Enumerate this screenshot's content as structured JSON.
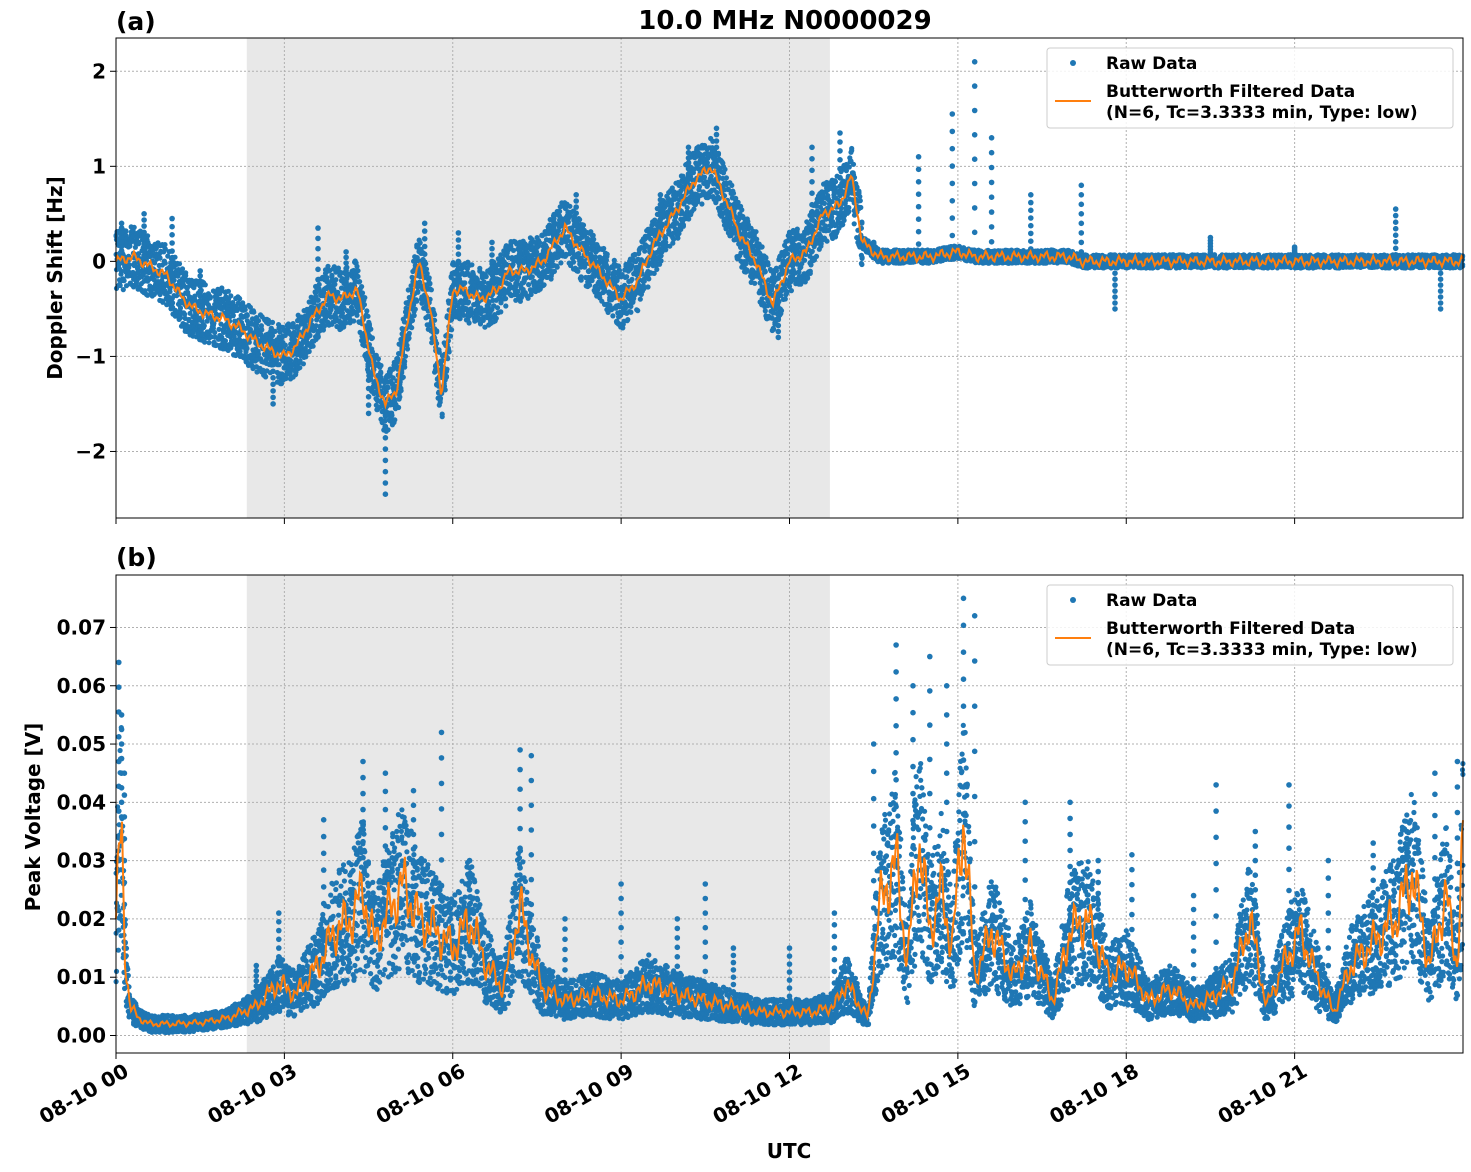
{
  "figure": {
    "title": "10.0 MHz N0000029",
    "xlabel": "UTC"
  },
  "colors": {
    "raw": "#1f77b4",
    "filtered": "#ff7f0e",
    "shade": "#e8e8e8",
    "grid": "#b0b0b0"
  },
  "chart_data": [
    {
      "type": "scatter",
      "panel_label": "(a)",
      "ylabel": "Doppler Shift [Hz]",
      "xlim": [
        0,
        24
      ],
      "ylim": [
        -2.7,
        2.35
      ],
      "yticks": [
        2,
        1,
        0,
        -1,
        -2
      ],
      "ytick_labels": [
        "2",
        "1",
        "0",
        "−1",
        "−2"
      ],
      "grid": true,
      "legend_position": "top-right",
      "legend": [
        "Raw Data",
        "Butterworth Filtered Data",
        "(N=6, Tc=3.3333 min, Type: low)"
      ],
      "shaded_x_range": [
        2.33,
        12.72
      ],
      "series": [
        {
          "name": "Butterworth Filtered Data",
          "x": [
            0,
            0.3,
            0.6,
            0.9,
            1.2,
            1.4,
            1.6,
            1.9,
            2.2,
            2.5,
            2.8,
            3.0,
            3.2,
            3.5,
            3.8,
            4.0,
            4.3,
            4.6,
            4.8,
            5.0,
            5.2,
            5.4,
            5.6,
            5.8,
            6.0,
            6.2,
            6.5,
            6.8,
            7.0,
            7.3,
            7.6,
            8.0,
            8.3,
            8.6,
            9.0,
            9.3,
            9.6,
            10.0,
            10.3,
            10.6,
            10.9,
            11.1,
            11.4,
            11.7,
            12.0,
            12.3,
            12.6,
            12.9,
            13.1,
            13.3,
            13.6,
            14.0,
            14.5,
            15.0,
            15.3,
            16.0,
            17.0,
            17.2,
            18.0,
            19.0,
            20.0,
            21.0,
            22.0,
            23.0,
            24.0
          ],
          "y": [
            0.0,
            0.05,
            -0.05,
            -0.15,
            -0.4,
            -0.5,
            -0.55,
            -0.6,
            -0.7,
            -0.85,
            -0.95,
            -1.0,
            -0.9,
            -0.6,
            -0.35,
            -0.4,
            -0.3,
            -1.2,
            -1.5,
            -1.35,
            -0.6,
            0.0,
            -0.5,
            -1.4,
            -0.3,
            -0.3,
            -0.4,
            -0.3,
            -0.1,
            -0.1,
            0.0,
            0.35,
            0.1,
            -0.1,
            -0.4,
            -0.2,
            0.2,
            0.55,
            0.85,
            1.0,
            0.6,
            0.3,
            0.0,
            -0.45,
            0.0,
            0.1,
            0.5,
            0.6,
            0.9,
            0.2,
            0.05,
            0.05,
            0.05,
            0.1,
            0.05,
            0.05,
            0.05,
            0.0,
            0.0,
            0.0,
            0.0,
            0.0,
            0.0,
            0.0,
            0.0
          ]
        },
        {
          "name": "Raw Data",
          "x": [
            0.1,
            0.5,
            1.0,
            1.5,
            2.0,
            2.5,
            2.8,
            3.2,
            3.6,
            4.1,
            4.5,
            4.8,
            5.1,
            5.5,
            6.1,
            6.7,
            7.2,
            7.8,
            8.2,
            8.7,
            9.1,
            9.7,
            10.2,
            10.7,
            11.2,
            11.8,
            12.4,
            12.9,
            13.5,
            14.3,
            14.9,
            15.3,
            15.6,
            16.3,
            17.2,
            17.8,
            19.5,
            21.0,
            22.8,
            23.6
          ],
          "y": [
            0.4,
            0.5,
            0.45,
            -0.1,
            -0.4,
            -0.6,
            -1.5,
            -0.9,
            0.35,
            0.1,
            -1.6,
            -2.45,
            -0.9,
            0.4,
            0.3,
            0.2,
            0.2,
            0.45,
            0.7,
            -0.3,
            -0.3,
            0.7,
            1.2,
            1.4,
            0.4,
            -0.8,
            1.2,
            1.35,
            0.2,
            1.1,
            1.55,
            2.1,
            1.3,
            0.7,
            0.8,
            -0.5,
            0.25,
            0.15,
            0.55,
            -0.5
          ]
        }
      ]
    },
    {
      "type": "scatter",
      "panel_label": "(b)",
      "ylabel": "Peak Voltage [V]",
      "xlim": [
        0,
        24
      ],
      "ylim": [
        -0.003,
        0.079
      ],
      "yticks": [
        0.07,
        0.06,
        0.05,
        0.04,
        0.03,
        0.02,
        0.01,
        0.0
      ],
      "ytick_labels": [
        "0.07",
        "0.06",
        "0.05",
        "0.04",
        "0.03",
        "0.02",
        "0.01",
        "0.00"
      ],
      "xticks": [
        0,
        3,
        6,
        9,
        12,
        15,
        18,
        21
      ],
      "xtick_labels": [
        "08-10 00",
        "08-10 03",
        "08-10 06",
        "08-10 09",
        "08-10 12",
        "08-10 15",
        "08-10 18",
        "08-10 21"
      ],
      "grid": true,
      "legend_position": "top-right",
      "legend": [
        "Raw Data",
        "Butterworth Filtered Data",
        "(N=6, Tc=3.3333 min, Type: low)"
      ],
      "shaded_x_range": [
        2.33,
        12.72
      ],
      "series": [
        {
          "name": "Butterworth Filtered Data",
          "x": [
            0,
            0.05,
            0.1,
            0.15,
            0.25,
            0.4,
            0.6,
            1.0,
            1.5,
            2.0,
            2.5,
            2.9,
            3.2,
            3.6,
            3.9,
            4.2,
            4.4,
            4.6,
            4.9,
            5.1,
            5.4,
            5.7,
            6.0,
            6.3,
            6.6,
            6.9,
            7.2,
            7.4,
            7.6,
            8.0,
            8.5,
            9.0,
            9.5,
            10.0,
            10.5,
            11.0,
            11.5,
            12.0,
            12.4,
            12.8,
            13.0,
            13.2,
            13.4,
            13.6,
            13.9,
            14.1,
            14.3,
            14.5,
            14.7,
            14.9,
            15.1,
            15.3,
            15.6,
            16.0,
            16.3,
            16.7,
            17.0,
            17.3,
            17.7,
            18.0,
            18.4,
            18.8,
            19.2,
            19.6,
            19.9,
            20.2,
            20.5,
            20.8,
            21.1,
            21.4,
            21.7,
            22.0,
            22.4,
            22.8,
            23.1,
            23.4,
            23.7,
            23.9,
            24.0
          ],
          "y": [
            0.02,
            0.03,
            0.035,
            0.015,
            0.005,
            0.003,
            0.002,
            0.002,
            0.0022,
            0.003,
            0.005,
            0.009,
            0.007,
            0.012,
            0.018,
            0.02,
            0.025,
            0.016,
            0.022,
            0.026,
            0.02,
            0.018,
            0.015,
            0.02,
            0.012,
            0.008,
            0.022,
            0.014,
            0.008,
            0.006,
            0.007,
            0.006,
            0.009,
            0.007,
            0.006,
            0.005,
            0.004,
            0.004,
            0.004,
            0.005,
            0.009,
            0.006,
            0.003,
            0.022,
            0.03,
            0.012,
            0.034,
            0.018,
            0.025,
            0.015,
            0.038,
            0.01,
            0.018,
            0.01,
            0.015,
            0.006,
            0.018,
            0.02,
            0.01,
            0.012,
            0.006,
            0.008,
            0.005,
            0.007,
            0.009,
            0.02,
            0.005,
            0.012,
            0.018,
            0.01,
            0.004,
            0.012,
            0.016,
            0.02,
            0.028,
            0.012,
            0.024,
            0.012,
            0.033
          ]
        },
        {
          "name": "Raw Data",
          "x": [
            0.05,
            0.1,
            0.15,
            2.5,
            2.9,
            3.7,
            4.4,
            4.8,
            5.3,
            5.8,
            6.3,
            7.2,
            7.4,
            8.0,
            9.0,
            10.0,
            10.5,
            11.0,
            12.0,
            12.8,
            13.5,
            13.9,
            14.2,
            14.5,
            14.8,
            15.1,
            15.3,
            16.2,
            17.0,
            17.5,
            18.1,
            19.2,
            19.6,
            20.3,
            20.9,
            21.6,
            22.4,
            23.0,
            23.5,
            23.9
          ],
          "y": [
            0.064,
            0.055,
            0.045,
            0.012,
            0.021,
            0.037,
            0.047,
            0.045,
            0.042,
            0.052,
            0.03,
            0.049,
            0.048,
            0.02,
            0.026,
            0.02,
            0.026,
            0.015,
            0.015,
            0.021,
            0.05,
            0.067,
            0.06,
            0.065,
            0.06,
            0.075,
            0.072,
            0.04,
            0.04,
            0.03,
            0.031,
            0.024,
            0.043,
            0.035,
            0.043,
            0.03,
            0.033,
            0.035,
            0.045,
            0.047
          ]
        }
      ]
    }
  ]
}
